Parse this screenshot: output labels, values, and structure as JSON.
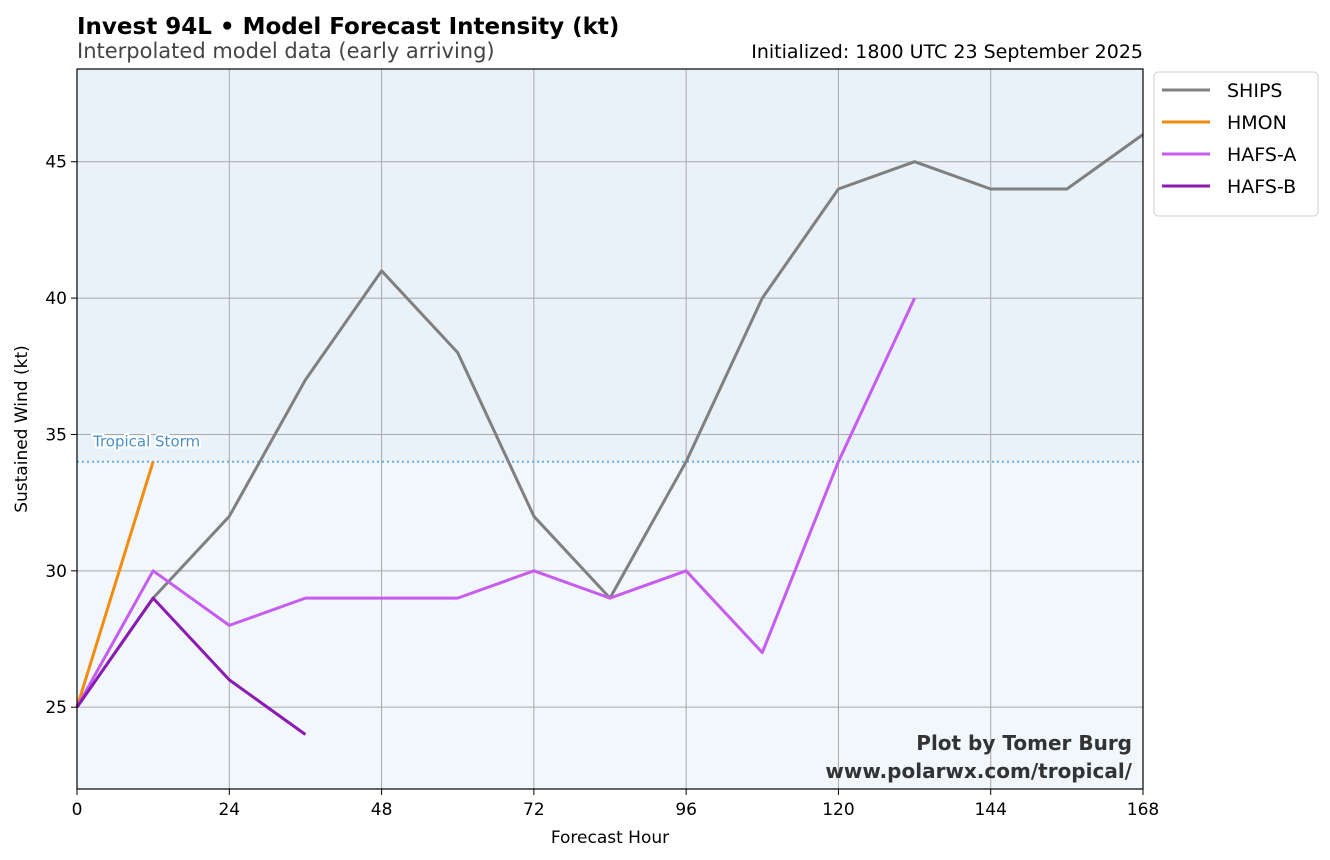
{
  "header": {
    "title": "Invest 94L • Model Forecast Intensity (kt)",
    "subtitle": "Interpolated model data (early arriving)",
    "initialized": "Initialized: 1800 UTC 23 September 2025"
  },
  "credit": {
    "line1": "Plot by Tomer Burg",
    "line2": "www.polarwx.com/tropical/"
  },
  "threshold": {
    "label": "Tropical Storm",
    "value": 34,
    "color": "#6aaee0"
  },
  "colors": {
    "plot_bg_upper": "#e9f1f9",
    "plot_bg_lower": "#f2f7fb",
    "grid": "#a9a9a9"
  },
  "chart_data": {
    "type": "line",
    "xlabel": "Forecast Hour",
    "ylabel": "Sustained Wind (kt)",
    "xlim": [
      0,
      168
    ],
    "ylim": [
      22,
      48.4
    ],
    "xticks": [
      0,
      24,
      48,
      72,
      96,
      120,
      144,
      168
    ],
    "yticks": [
      25,
      30,
      35,
      40,
      45
    ],
    "grid": true,
    "legend_position": "outside-top-right",
    "series": [
      {
        "name": "SHIPS",
        "color": "#808080",
        "points": [
          [
            0,
            25
          ],
          [
            12,
            29
          ],
          [
            24,
            32
          ],
          [
            36,
            37
          ],
          [
            48,
            41
          ],
          [
            60,
            38
          ],
          [
            72,
            32
          ],
          [
            84,
            29
          ],
          [
            96,
            34
          ],
          [
            108,
            40
          ],
          [
            120,
            44
          ],
          [
            132,
            45
          ],
          [
            144,
            44
          ],
          [
            156,
            44
          ],
          [
            168,
            46
          ]
        ]
      },
      {
        "name": "HMON",
        "color": "#f28c0f",
        "points": [
          [
            0,
            25
          ],
          [
            12,
            34
          ]
        ]
      },
      {
        "name": "HAFS-A",
        "color": "#c65cf0",
        "points": [
          [
            0,
            25
          ],
          [
            12,
            30
          ],
          [
            24,
            28
          ],
          [
            36,
            29
          ],
          [
            48,
            29
          ],
          [
            60,
            29
          ],
          [
            72,
            30
          ],
          [
            84,
            29
          ],
          [
            96,
            30
          ],
          [
            108,
            27
          ],
          [
            120,
            34
          ],
          [
            132,
            40
          ]
        ]
      },
      {
        "name": "HAFS-B",
        "color": "#8b1ab3",
        "points": [
          [
            0,
            25
          ],
          [
            12,
            29
          ],
          [
            24,
            26
          ],
          [
            36,
            24
          ]
        ]
      }
    ]
  }
}
